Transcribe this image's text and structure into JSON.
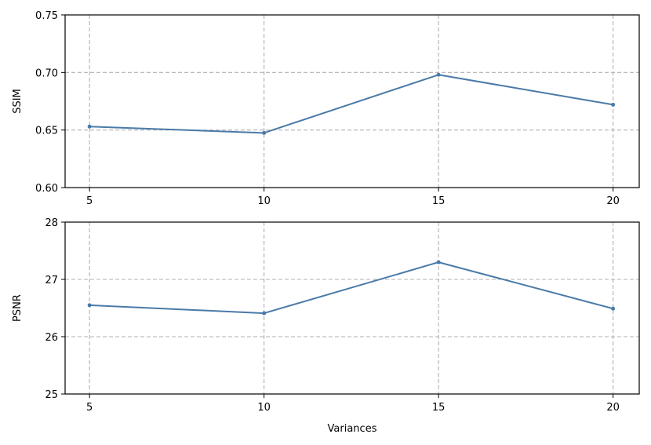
{
  "chart_data": [
    {
      "type": "line",
      "xlabel": "",
      "ylabel": "SSIM",
      "x": [
        5,
        10,
        15,
        20
      ],
      "xticks": [
        "5",
        "10",
        "15",
        "20"
      ],
      "xlim": [
        4.3,
        20.75
      ],
      "ylim": [
        0.6,
        0.75
      ],
      "yticks": [
        "0.60",
        "0.65",
        "0.70",
        "0.75"
      ],
      "ytick_values": [
        0.6,
        0.65,
        0.7,
        0.75
      ],
      "grid": true,
      "series": [
        {
          "values": [
            0.653,
            0.6475,
            0.698,
            0.672
          ],
          "color": "#4a7aa8"
        }
      ]
    },
    {
      "type": "line",
      "xlabel": "Variances",
      "ylabel": "PSNR",
      "x": [
        5,
        10,
        15,
        20
      ],
      "xticks": [
        "5",
        "10",
        "15",
        "20"
      ],
      "xlim": [
        4.3,
        20.75
      ],
      "ylim": [
        25,
        28
      ],
      "yticks": [
        "25",
        "26",
        "27",
        "28"
      ],
      "ytick_values": [
        25,
        26,
        27,
        28
      ],
      "grid": true,
      "series": [
        {
          "values": [
            26.55,
            26.41,
            27.3,
            26.49
          ],
          "color": "#4a7aa8"
        }
      ]
    }
  ]
}
